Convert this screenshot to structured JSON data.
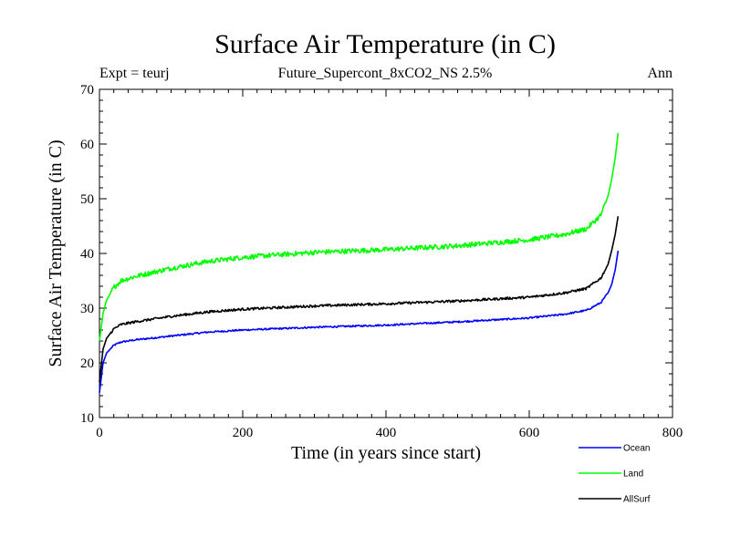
{
  "chart_data": {
    "type": "line",
    "title": "Surface Air Temperature (in C)",
    "subtitle": "Future_Supercont_8xCO2_NS 2.5%",
    "left_label": "Expt = teurj",
    "right_label": "Ann",
    "xlabel": "Time (in years since start)",
    "ylabel": "Surface Air Temperature (in C)",
    "xlim": [
      0,
      800
    ],
    "ylim": [
      10,
      70
    ],
    "xticks": [
      0,
      200,
      400,
      600,
      800
    ],
    "yticks": [
      10,
      20,
      30,
      40,
      50,
      60,
      70
    ],
    "grid": false,
    "legend_position": "bottom-right",
    "series": [
      {
        "name": "Ocean",
        "color": "#0000ff",
        "x": [
          0,
          5,
          10,
          20,
          30,
          50,
          100,
          150,
          200,
          300,
          400,
          500,
          600,
          650,
          680,
          700,
          710,
          715,
          720,
          724
        ],
        "values": [
          14.5,
          20.0,
          21.8,
          23.2,
          23.8,
          24.2,
          24.9,
          25.6,
          26.0,
          26.5,
          26.9,
          27.5,
          28.2,
          28.9,
          29.6,
          31.0,
          32.8,
          34.3,
          37.0,
          40.5
        ]
      },
      {
        "name": "Land",
        "color": "#00ff00",
        "x": [
          0,
          5,
          10,
          20,
          30,
          50,
          100,
          150,
          200,
          300,
          400,
          500,
          600,
          650,
          680,
          700,
          710,
          715,
          720,
          724
        ],
        "values": [
          24.0,
          29.0,
          31.5,
          33.8,
          35.0,
          35.8,
          37.3,
          38.5,
          39.3,
          40.2,
          40.7,
          41.4,
          42.5,
          43.5,
          44.5,
          47.0,
          50.5,
          53.5,
          57.5,
          62.0
        ]
      },
      {
        "name": "AllSurf",
        "color": "#000000",
        "x": [
          0,
          5,
          10,
          20,
          30,
          50,
          100,
          150,
          200,
          300,
          400,
          500,
          600,
          650,
          680,
          700,
          710,
          715,
          720,
          724
        ],
        "values": [
          16.5,
          22.5,
          24.5,
          26.2,
          27.0,
          27.5,
          28.5,
          29.3,
          29.8,
          30.4,
          30.8,
          31.3,
          32.0,
          32.8,
          33.6,
          35.5,
          38.0,
          40.5,
          43.5,
          46.8
        ]
      }
    ]
  }
}
